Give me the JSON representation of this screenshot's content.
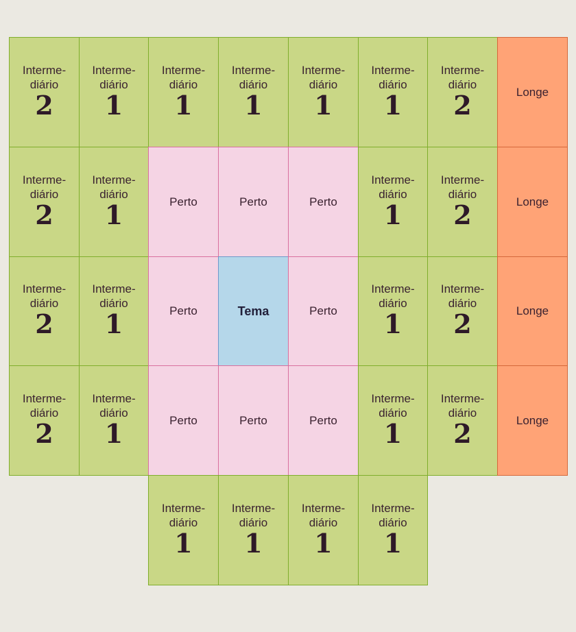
{
  "labels": {
    "intermediate_line1": "Interme-",
    "intermediate_line2": "diário",
    "near": "Perto",
    "far": "Longe",
    "topic": "Tema"
  },
  "grid": [
    [
      {
        "t": "mid",
        "n": "2"
      },
      {
        "t": "mid",
        "n": "1"
      },
      {
        "t": "mid",
        "n": "1"
      },
      {
        "t": "mid",
        "n": "1"
      },
      {
        "t": "mid",
        "n": "1"
      },
      {
        "t": "mid",
        "n": "1"
      },
      {
        "t": "mid",
        "n": "2"
      },
      {
        "t": "far"
      }
    ],
    [
      {
        "t": "mid",
        "n": "2"
      },
      {
        "t": "mid",
        "n": "1"
      },
      {
        "t": "near"
      },
      {
        "t": "near"
      },
      {
        "t": "near"
      },
      {
        "t": "mid",
        "n": "1"
      },
      {
        "t": "mid",
        "n": "2"
      },
      {
        "t": "far"
      }
    ],
    [
      {
        "t": "mid",
        "n": "2"
      },
      {
        "t": "mid",
        "n": "1"
      },
      {
        "t": "near"
      },
      {
        "t": "topic"
      },
      {
        "t": "near"
      },
      {
        "t": "mid",
        "n": "1"
      },
      {
        "t": "mid",
        "n": "2"
      },
      {
        "t": "far"
      }
    ],
    [
      {
        "t": "mid",
        "n": "2"
      },
      {
        "t": "mid",
        "n": "1"
      },
      {
        "t": "near"
      },
      {
        "t": "near"
      },
      {
        "t": "near"
      },
      {
        "t": "mid",
        "n": "1"
      },
      {
        "t": "mid",
        "n": "2"
      },
      {
        "t": "far"
      }
    ],
    [
      null,
      null,
      {
        "t": "mid",
        "n": "1"
      },
      {
        "t": "mid",
        "n": "1"
      },
      {
        "t": "mid",
        "n": "1"
      },
      {
        "t": "mid",
        "n": "1"
      },
      null,
      null
    ]
  ],
  "colors": {
    "background": "#ebe9e2",
    "intermediate": "#c9d786",
    "near": "#f5d4e4",
    "far": "#ffa376",
    "topic": "#b5d7ea"
  }
}
